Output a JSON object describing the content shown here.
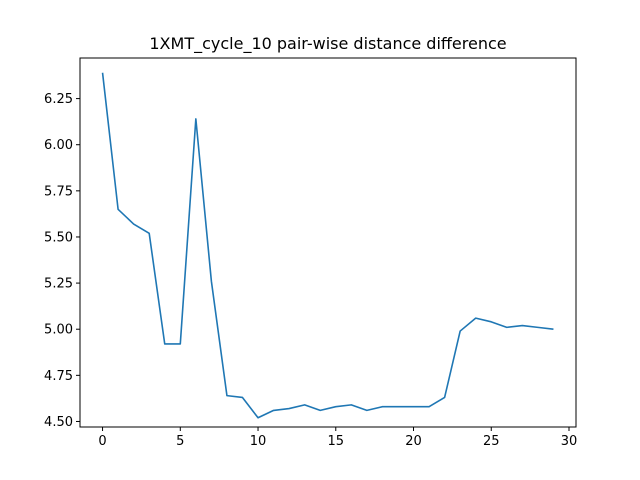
{
  "chart_data": {
    "type": "line",
    "title": "1XMT_cycle_10 pair-wise distance difference",
    "xlabel": "",
    "ylabel": "",
    "xlim": [
      -1.45,
      30.45
    ],
    "ylim": [
      4.47,
      6.47
    ],
    "xticks": [
      "0",
      "5",
      "10",
      "15",
      "20",
      "25",
      "30"
    ],
    "yticks": [
      "4.50",
      "4.75",
      "5.00",
      "5.25",
      "5.50",
      "5.75",
      "6.00",
      "6.25"
    ],
    "grid": false,
    "colors": {
      "line": "#1f77b4"
    },
    "series": [
      {
        "x": [
          0,
          1,
          2,
          3,
          4,
          5,
          6,
          7,
          8,
          9,
          10,
          11,
          12,
          13,
          14,
          15,
          16,
          17,
          18,
          19,
          20,
          21,
          22,
          23,
          24,
          25,
          26,
          27,
          28,
          29
        ],
        "values": [
          6.39,
          5.65,
          5.57,
          5.52,
          4.92,
          4.92,
          6.14,
          5.26,
          4.64,
          4.63,
          4.52,
          4.56,
          4.57,
          4.59,
          4.56,
          4.58,
          4.59,
          4.56,
          4.58,
          4.58,
          4.58,
          4.58,
          4.63,
          4.99,
          5.06,
          5.04,
          5.01,
          5.02,
          5.01,
          5.0
        ]
      }
    ]
  }
}
